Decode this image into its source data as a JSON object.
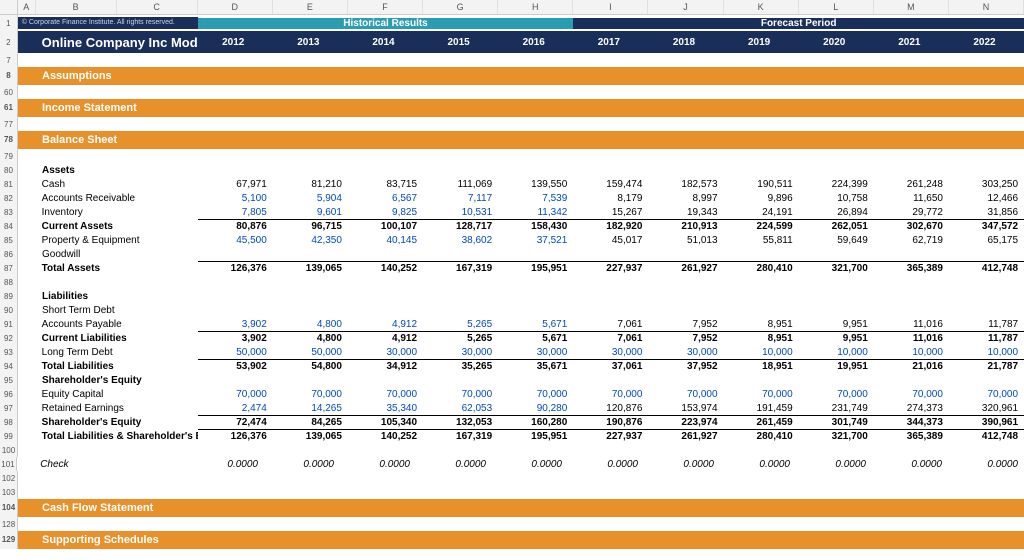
{
  "columns": [
    "A",
    "B",
    "C",
    "D",
    "E",
    "F",
    "G",
    "H",
    "I",
    "J",
    "K",
    "L",
    "M",
    "N"
  ],
  "copyright": "© Corporate Finance Institute. All rights reserved.",
  "title": "Online Company Inc Model",
  "period_hist": "Historical Results",
  "period_fcst": "Forecast Period",
  "years": [
    "2012",
    "2013",
    "2014",
    "2015",
    "2016",
    "2017",
    "2018",
    "2019",
    "2020",
    "2021",
    "2022"
  ],
  "sections": {
    "assumptions": "Assumptions",
    "income": "Income Statement",
    "balance": "Balance Sheet",
    "cashflow": "Cash Flow Statement",
    "supporting": "Supporting Schedules"
  },
  "labels": {
    "assets": "Assets",
    "cash": "Cash",
    "ar": "Accounts Receivable",
    "inv": "Inventory",
    "curr_assets": "Current Assets",
    "ppe": "Property & Equipment",
    "goodwill": "Goodwill",
    "tot_assets": "Total Assets",
    "liab": "Liabilities",
    "std": "Short Term Debt",
    "ap": "Accounts Payable",
    "curr_liab": "Current Liabilities",
    "ltd": "Long Term Debt",
    "tot_liab": "Total Liabilities",
    "se": "Shareholder's Equity",
    "equity_cap": "Equity Capital",
    "ret_earn": "Retained Earnings",
    "se_total": "Shareholder's Equity",
    "tlse": "Total Liabilities & Shareholder's Equity",
    "check": "Check"
  },
  "data": {
    "cash": [
      "67,971",
      "81,210",
      "83,715",
      "111,069",
      "139,550",
      "159,474",
      "182,573",
      "190,511",
      "224,399",
      "261,248",
      "303,250"
    ],
    "ar": [
      "5,100",
      "5,904",
      "6,567",
      "7,117",
      "7,539",
      "8,179",
      "8,997",
      "9,896",
      "10,758",
      "11,650",
      "12,466"
    ],
    "inv": [
      "7,805",
      "9,601",
      "9,825",
      "10,531",
      "11,342",
      "15,267",
      "19,343",
      "24,191",
      "26,894",
      "29,772",
      "31,856"
    ],
    "curr_assets": [
      "80,876",
      "96,715",
      "100,107",
      "128,717",
      "158,430",
      "182,920",
      "210,913",
      "224,599",
      "262,051",
      "302,670",
      "347,572"
    ],
    "ppe": [
      "45,500",
      "42,350",
      "40,145",
      "38,602",
      "37,521",
      "45,017",
      "51,013",
      "55,811",
      "59,649",
      "62,719",
      "65,175"
    ],
    "tot_assets": [
      "126,376",
      "139,065",
      "140,252",
      "167,319",
      "195,951",
      "227,937",
      "261,927",
      "280,410",
      "321,700",
      "365,389",
      "412,748"
    ],
    "ap": [
      "3,902",
      "4,800",
      "4,912",
      "5,265",
      "5,671",
      "7,061",
      "7,952",
      "8,951",
      "9,951",
      "11,016",
      "11,787"
    ],
    "curr_liab": [
      "3,902",
      "4,800",
      "4,912",
      "5,265",
      "5,671",
      "7,061",
      "7,952",
      "8,951",
      "9,951",
      "11,016",
      "11,787"
    ],
    "ltd": [
      "50,000",
      "50,000",
      "30,000",
      "30,000",
      "30,000",
      "30,000",
      "30,000",
      "10,000",
      "10,000",
      "10,000",
      "10,000"
    ],
    "tot_liab": [
      "53,902",
      "54,800",
      "34,912",
      "35,265",
      "35,671",
      "37,061",
      "37,952",
      "18,951",
      "19,951",
      "21,016",
      "21,787"
    ],
    "equity_cap": [
      "70,000",
      "70,000",
      "70,000",
      "70,000",
      "70,000",
      "70,000",
      "70,000",
      "70,000",
      "70,000",
      "70,000",
      "70,000"
    ],
    "ret_earn": [
      "2,474",
      "14,265",
      "35,340",
      "62,053",
      "90,280",
      "120,876",
      "153,974",
      "191,459",
      "231,749",
      "274,373",
      "320,961"
    ],
    "se_total": [
      "72,474",
      "84,265",
      "105,340",
      "132,053",
      "160,280",
      "190,876",
      "223,974",
      "261,459",
      "301,749",
      "344,373",
      "390,961"
    ],
    "tlse": [
      "126,376",
      "139,065",
      "140,252",
      "167,319",
      "195,951",
      "227,937",
      "261,927",
      "280,410",
      "321,700",
      "365,389",
      "412,748"
    ],
    "check": [
      "0.0000",
      "0.0000",
      "0.0000",
      "0.0000",
      "0.0000",
      "0.0000",
      "0.0000",
      "0.0000",
      "0.0000",
      "0.0000",
      "0.0000"
    ]
  },
  "row_numbers": {
    "copyright": "1",
    "title": "2",
    "blank7": "7",
    "assumptions": "8",
    "blank60": "60",
    "income": "61",
    "blank77": "77",
    "balance": "78",
    "blank79": "79",
    "assets": "80",
    "cash": "81",
    "ar": "82",
    "inv": "83",
    "curr_assets": "84",
    "ppe": "85",
    "goodwill": "86",
    "tot_assets": "87",
    "blank88": "88",
    "liab": "89",
    "std": "90",
    "ap": "91",
    "curr_liab": "92",
    "ltd": "93",
    "tot_liab": "94",
    "se": "95",
    "equity_cap": "96",
    "ret_earn": "97",
    "se_total": "98",
    "tlse": "99",
    "blank100": "100",
    "check": "101",
    "blank102": "102",
    "blank103": "103",
    "cashflow": "104",
    "blank128": "128",
    "supporting": "129"
  },
  "styling": {
    "hist_bg": "#2a9db0",
    "fcst_bg": "#1a2e5a",
    "section_bg": "#e8912a",
    "input_blue": "#0048c0",
    "font_size_body": 10,
    "font_size_title": 13,
    "col_width_label": 182,
    "col_width_data": 76,
    "hist_cols": 5,
    "fcst_cols": 6
  }
}
